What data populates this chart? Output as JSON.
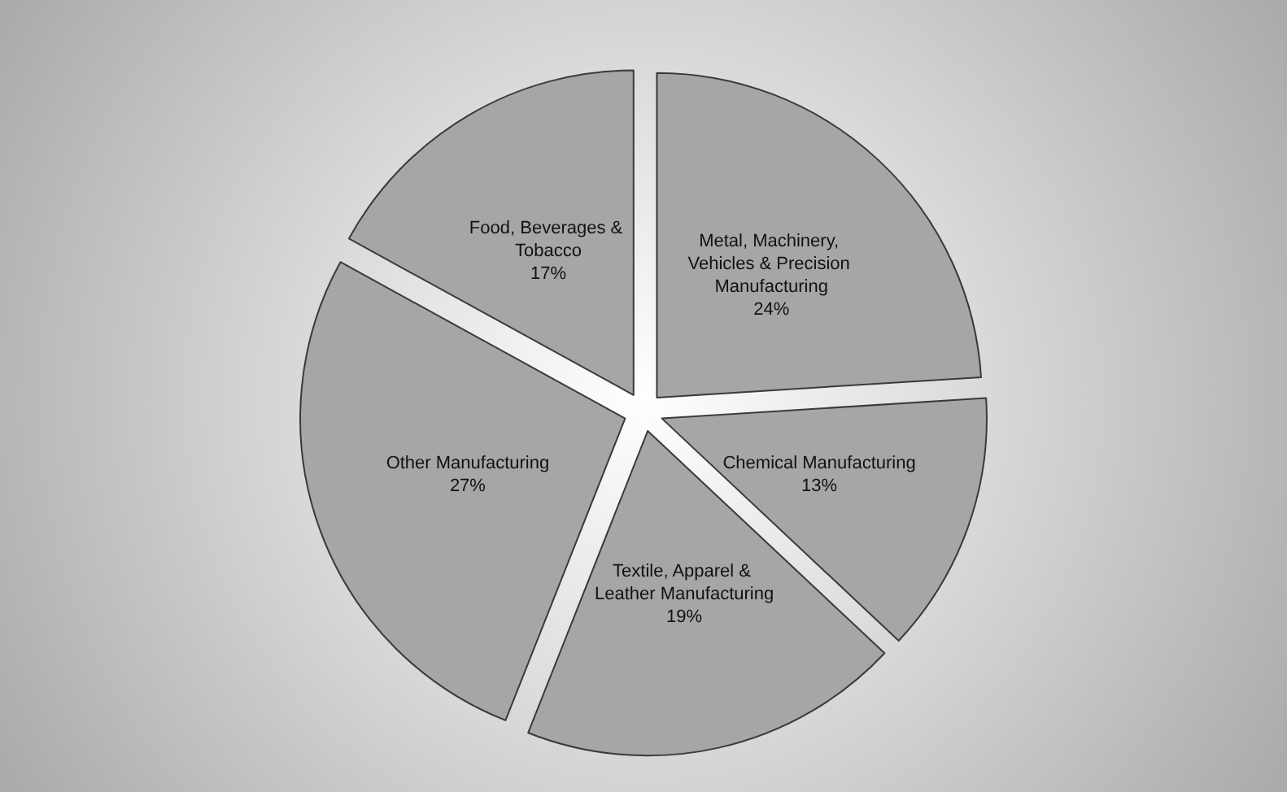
{
  "chart_data": {
    "type": "pie",
    "categories": [
      "Metal, Machinery, Vehicles & Precision Manufacturing",
      "Chemical Manufacturing",
      "Textile, Apparel & Leather Manufacturing",
      "Other Manufacturing",
      "Food, Beverages & Tobacco"
    ],
    "values": [
      24,
      13,
      19,
      27,
      17
    ],
    "colors": [
      "#a6a6a6",
      "#a6a6a6",
      "#a6a6a6",
      "#a6a6a6",
      "#a6a6a6"
    ],
    "value_labels": [
      "24%",
      "13%",
      "19%",
      "27%",
      "17%"
    ],
    "legend": false
  }
}
